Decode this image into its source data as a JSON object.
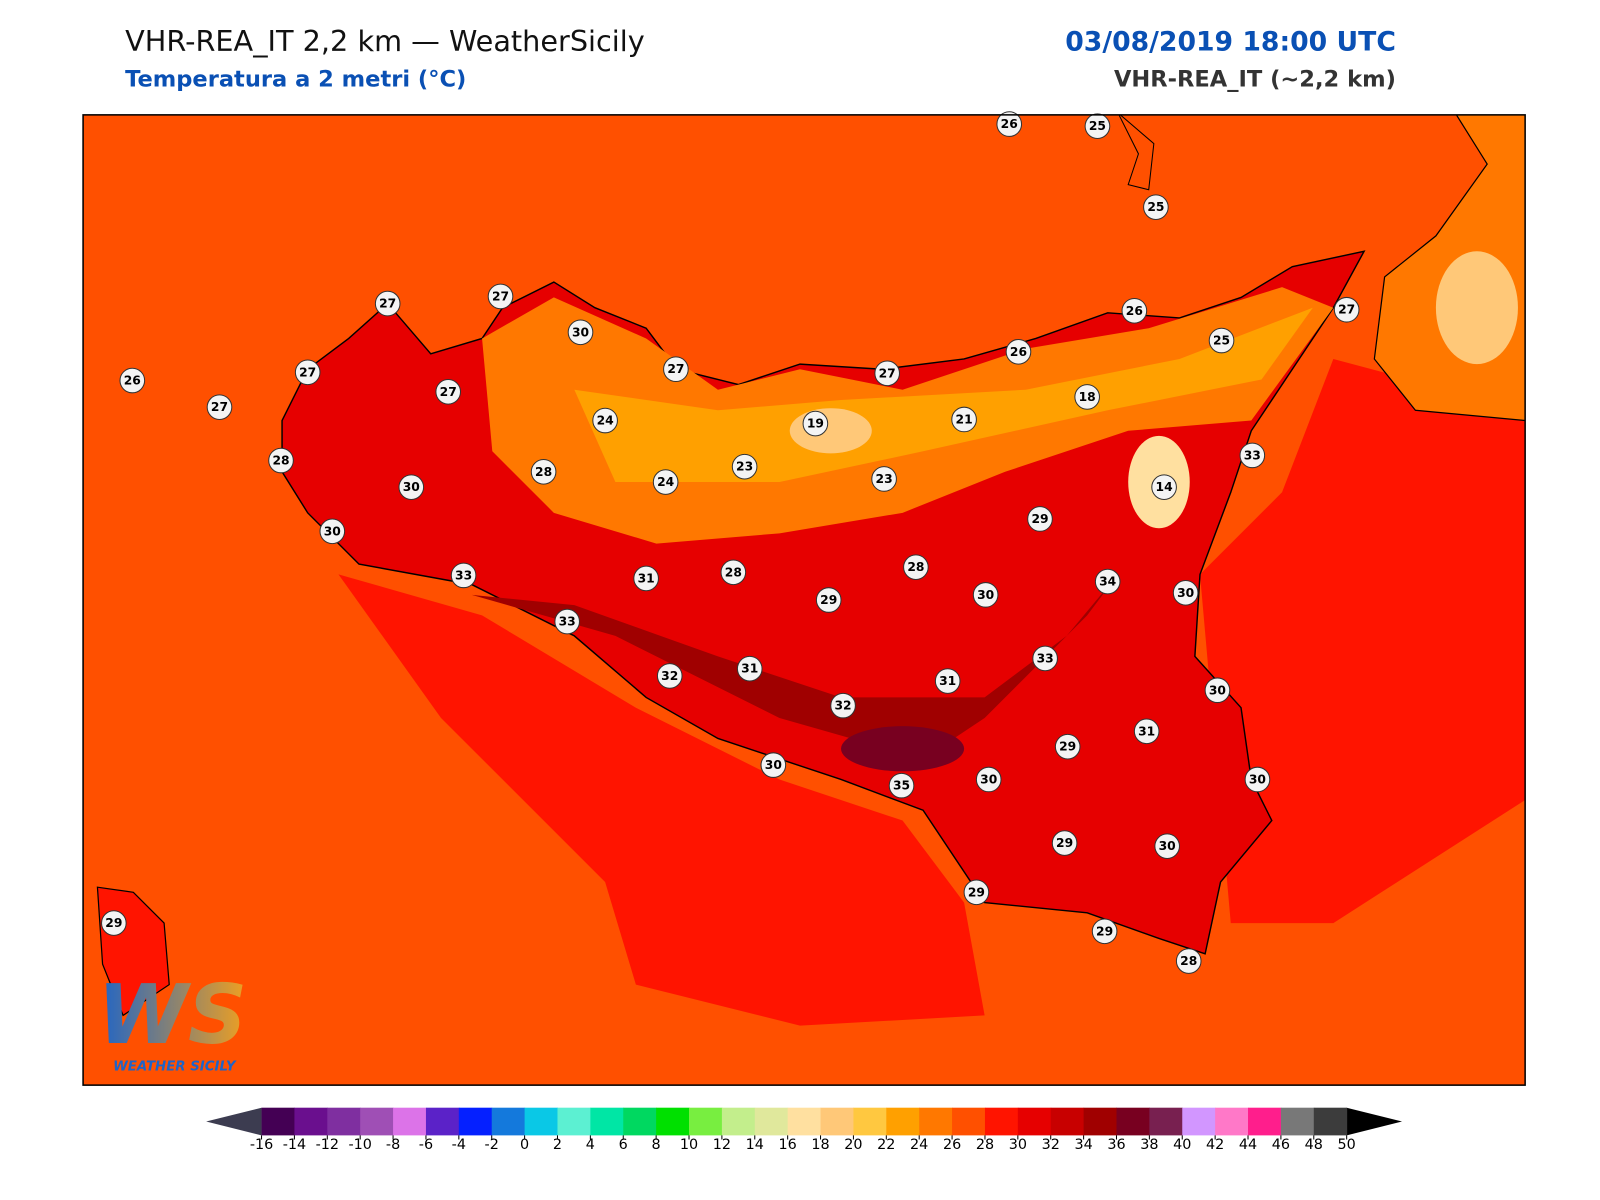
{
  "header": {
    "title": "VHR-REA_IT 2,2 km — WeatherSicily",
    "subtitle": "Temperatura a 2 metri (°C)",
    "datetime": "03/08/2019 18:00 UTC",
    "model": "VHR-REA_IT (~2,2 km)"
  },
  "map": {
    "station_labels": [
      26,
      25,
      25,
      27,
      27,
      30,
      26,
      27,
      27,
      27,
      27,
      27,
      26,
      26,
      25,
      27,
      18,
      21,
      19,
      24,
      33,
      28,
      30,
      28,
      24,
      23,
      23,
      14,
      29,
      30,
      28,
      28,
      31,
      33,
      29,
      30,
      34,
      30,
      33,
      33,
      32,
      31,
      31,
      32,
      30,
      31,
      29,
      30,
      35,
      30,
      30,
      29,
      30,
      29,
      29,
      29,
      28
    ]
  },
  "logo": {
    "mark": "WS",
    "text": "WEATHER SICILY"
  },
  "colorbar": {
    "ticks": [
      -16,
      -14,
      -12,
      -10,
      -8,
      -6,
      -4,
      -2,
      0,
      2,
      4,
      6,
      8,
      10,
      12,
      14,
      16,
      18,
      20,
      22,
      24,
      26,
      28,
      30,
      32,
      34,
      36,
      38,
      40,
      42,
      44,
      46,
      48,
      50
    ],
    "colors": [
      "#440054",
      "#6a0f8e",
      "#7f2fa0",
      "#9f4fb5",
      "#dc73e8",
      "#5b22c8",
      "#0520ff",
      "#1479dc",
      "#0ac8e6",
      "#5cf0d2",
      "#00e6a5",
      "#00d860",
      "#00e000",
      "#78ee40",
      "#c3ee8c",
      "#e0e89c",
      "#ffe0a0",
      "#ffc878",
      "#ffc840",
      "#ffa000",
      "#ff7800",
      "#ff5000",
      "#ff1400",
      "#e60000",
      "#c80000",
      "#a00000",
      "#780020",
      "#782050",
      "#d296ff",
      "#ff78c8",
      "#ff1e8c",
      "#787878",
      "#3c3c3c"
    ],
    "under_color": "#3c3c50",
    "over_color": "#000000"
  }
}
